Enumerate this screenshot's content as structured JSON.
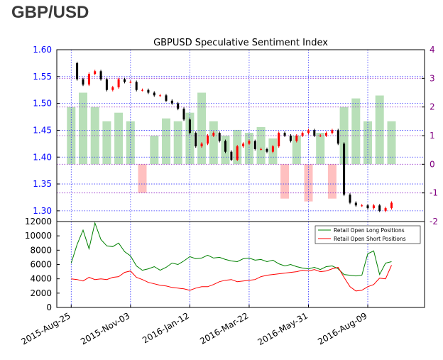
{
  "page_title": "GBP/USD",
  "colors": {
    "left_axis": "#0000ff",
    "right_axis": "#800080",
    "gridline_purple": "#9933cc",
    "gridline_blue": "#3333ff",
    "price_up": "#ff0000",
    "price_down": "#000000",
    "ssi_positive": "#b8dfb8",
    "ssi_negative": "#ffc0c0",
    "long_line": "#008000",
    "short_line": "#ff0000"
  },
  "chart_data": [
    {
      "type": "line",
      "title": "GBPUSD Speculative Sentiment Index",
      "x_ticks": [
        "2015-Aug-25",
        "2015-Nov-03",
        "2016-Jan-12",
        "2016-Mar-22",
        "2016-May-31",
        "2016-Aug-09"
      ],
      "x_range": [
        "2015-Aug-08",
        "2016-Oct-15"
      ],
      "y_left_ticks": [
        "1.30",
        "1.35",
        "1.40",
        "1.45",
        "1.50",
        "1.55",
        "1.60"
      ],
      "y_left_range": [
        1.28,
        1.6
      ],
      "y_right_ticks": [
        "-2",
        "-1",
        "0",
        "1",
        "2",
        "3",
        "4"
      ],
      "y_right_range": [
        -2,
        4
      ],
      "series": [
        {
          "kind": "price-candles",
          "x": [
            "2015-Aug-25",
            "2015-Sep-01",
            "2015-Sep-08",
            "2015-Sep-15",
            "2015-Sep-22",
            "2015-Sep-29",
            "2015-Oct-06",
            "2015-Oct-13",
            "2015-Oct-20",
            "2015-Oct-27",
            "2015-Nov-03",
            "2015-Nov-10",
            "2015-Nov-17",
            "2015-Nov-24",
            "2015-Dec-01",
            "2015-Dec-08",
            "2015-Dec-15",
            "2015-Dec-22",
            "2015-Dec-29",
            "2016-Jan-05",
            "2016-Jan-12",
            "2016-Jan-19",
            "2016-Jan-26",
            "2016-Feb-02",
            "2016-Feb-09",
            "2016-Feb-16",
            "2016-Feb-23",
            "2016-Mar-01",
            "2016-Mar-08",
            "2016-Mar-15",
            "2016-Mar-22",
            "2016-Mar-29",
            "2016-Apr-05",
            "2016-Apr-12",
            "2016-Apr-19",
            "2016-Apr-26",
            "2016-May-03",
            "2016-May-10",
            "2016-May-17",
            "2016-May-24",
            "2016-May-31",
            "2016-Jun-07",
            "2016-Jun-14",
            "2016-Jun-21",
            "2016-Jun-28",
            "2016-Jul-05",
            "2016-Jul-12",
            "2016-Jul-19",
            "2016-Jul-26",
            "2016-Aug-02",
            "2016-Aug-09",
            "2016-Aug-16",
            "2016-Aug-23",
            "2016-Aug-30",
            "2016-Sep-06"
          ],
          "values": [
            1.575,
            1.545,
            1.535,
            1.555,
            1.56,
            1.545,
            1.525,
            1.53,
            1.545,
            1.54,
            1.54,
            1.525,
            1.525,
            1.52,
            1.515,
            1.515,
            1.505,
            1.5,
            1.49,
            1.47,
            1.445,
            1.42,
            1.425,
            1.44,
            1.445,
            1.43,
            1.41,
            1.395,
            1.42,
            1.425,
            1.43,
            1.415,
            1.415,
            1.41,
            1.42,
            1.445,
            1.44,
            1.43,
            1.44,
            1.445,
            1.45,
            1.44,
            1.44,
            1.445,
            1.45,
            1.425,
            1.33,
            1.315,
            1.31,
            1.31,
            1.305,
            1.31,
            1.3,
            1.305,
            1.315
          ]
        },
        {
          "kind": "ssi-bars",
          "x": [
            "2015-Aug-25",
            "2015-Sep-08",
            "2015-Sep-22",
            "2015-Oct-06",
            "2015-Oct-20",
            "2015-Nov-03",
            "2015-Nov-17",
            "2015-Dec-01",
            "2015-Dec-15",
            "2015-Dec-29",
            "2016-Jan-12",
            "2016-Jan-26",
            "2016-Feb-09",
            "2016-Feb-23",
            "2016-Mar-08",
            "2016-Mar-22",
            "2016-Apr-05",
            "2016-Apr-19",
            "2016-May-03",
            "2016-May-17",
            "2016-May-31",
            "2016-Jun-14",
            "2016-Jun-28",
            "2016-Jul-12",
            "2016-Jul-26",
            "2016-Aug-09",
            "2016-Aug-23",
            "2016-Sep-06"
          ],
          "values": [
            2.0,
            2.5,
            2.0,
            1.5,
            1.8,
            1.5,
            -1.0,
            1.0,
            1.6,
            1.5,
            1.8,
            2.5,
            1.5,
            1.0,
            1.2,
            1.1,
            1.3,
            0.9,
            -1.2,
            1.0,
            -1.3,
            1.1,
            -1.2,
            2.0,
            2.3,
            1.5,
            2.4,
            1.5
          ]
        }
      ]
    },
    {
      "type": "line",
      "y_ticks": [
        "0",
        "2000",
        "4000",
        "6000",
        "8000",
        "10000",
        "12000"
      ],
      "y_range": [
        0,
        12000
      ],
      "legend_position": "top-right",
      "series": [
        {
          "name": "Retail Open Long Positions",
          "x": [
            "2015-Aug-25",
            "2015-Sep-01",
            "2015-Sep-08",
            "2015-Sep-15",
            "2015-Sep-22",
            "2015-Sep-29",
            "2015-Oct-06",
            "2015-Oct-13",
            "2015-Oct-20",
            "2015-Oct-27",
            "2015-Nov-03",
            "2015-Nov-10",
            "2015-Nov-17",
            "2015-Nov-24",
            "2015-Dec-01",
            "2015-Dec-08",
            "2015-Dec-15",
            "2015-Dec-22",
            "2015-Dec-29",
            "2016-Jan-05",
            "2016-Jan-12",
            "2016-Jan-19",
            "2016-Jan-26",
            "2016-Feb-02",
            "2016-Feb-09",
            "2016-Feb-16",
            "2016-Feb-23",
            "2016-Mar-01",
            "2016-Mar-08",
            "2016-Mar-15",
            "2016-Mar-22",
            "2016-Mar-29",
            "2016-Apr-05",
            "2016-Apr-12",
            "2016-Apr-19",
            "2016-Apr-26",
            "2016-May-03",
            "2016-May-10",
            "2016-May-17",
            "2016-May-24",
            "2016-May-31",
            "2016-Jun-07",
            "2016-Jun-14",
            "2016-Jun-21",
            "2016-Jun-28",
            "2016-Jul-05",
            "2016-Jul-12",
            "2016-Jul-19",
            "2016-Jul-26",
            "2016-Aug-02",
            "2016-Aug-09",
            "2016-Aug-16",
            "2016-Aug-23",
            "2016-Aug-30",
            "2016-Sep-06"
          ],
          "values": [
            6200,
            8800,
            10800,
            8200,
            11800,
            9500,
            8600,
            8500,
            9000,
            7800,
            7200,
            5800,
            5200,
            5400,
            5700,
            5200,
            5600,
            6200,
            6000,
            6500,
            7100,
            6800,
            6900,
            7300,
            6900,
            7000,
            6700,
            6500,
            6400,
            6800,
            6900,
            6600,
            6700,
            6400,
            6600,
            6100,
            5800,
            6000,
            5700,
            5500,
            5400,
            5600,
            5300,
            5700,
            5800,
            5400,
            4600,
            4500,
            4400,
            4500,
            7500,
            7900,
            4600,
            6200,
            6400
          ]
        },
        {
          "name": "Retail Open Short Positions",
          "x": [
            "2015-Aug-25",
            "2015-Sep-01",
            "2015-Sep-08",
            "2015-Sep-15",
            "2015-Sep-22",
            "2015-Sep-29",
            "2015-Oct-06",
            "2015-Oct-13",
            "2015-Oct-20",
            "2015-Oct-27",
            "2015-Nov-03",
            "2015-Nov-10",
            "2015-Nov-17",
            "2015-Nov-24",
            "2015-Dec-01",
            "2015-Dec-08",
            "2015-Dec-15",
            "2015-Dec-22",
            "2015-Dec-29",
            "2016-Jan-05",
            "2016-Jan-12",
            "2016-Jan-19",
            "2016-Jan-26",
            "2016-Feb-02",
            "2016-Feb-09",
            "2016-Feb-16",
            "2016-Feb-23",
            "2016-Mar-01",
            "2016-Mar-08",
            "2016-Mar-15",
            "2016-Mar-22",
            "2016-Mar-29",
            "2016-Apr-05",
            "2016-Apr-12",
            "2016-Apr-19",
            "2016-Apr-26",
            "2016-May-03",
            "2016-May-10",
            "2016-May-17",
            "2016-May-24",
            "2016-May-31",
            "2016-Jun-07",
            "2016-Jun-14",
            "2016-Jun-21",
            "2016-Jun-28",
            "2016-Jul-05",
            "2016-Jul-12",
            "2016-Jul-19",
            "2016-Jul-26",
            "2016-Aug-02",
            "2016-Aug-09",
            "2016-Aug-16",
            "2016-Aug-23",
            "2016-Aug-30",
            "2016-Sep-06"
          ],
          "values": [
            4000,
            3900,
            3700,
            4200,
            3900,
            4000,
            3900,
            4200,
            4300,
            4900,
            5100,
            4200,
            3900,
            3500,
            3300,
            3100,
            3000,
            2800,
            2700,
            2600,
            2400,
            2700,
            2900,
            2900,
            3200,
            3600,
            3800,
            3900,
            3600,
            3700,
            3800,
            3900,
            4300,
            4500,
            4600,
            4700,
            4800,
            4900,
            5000,
            5200,
            5100,
            5300,
            5000,
            5100,
            5400,
            5600,
            4200,
            2900,
            2300,
            2400,
            2900,
            3200,
            4100,
            4000,
            5900
          ]
        }
      ]
    }
  ],
  "x_axis_range": [
    "2015-Aug-08",
    "2016-Oct-15"
  ]
}
